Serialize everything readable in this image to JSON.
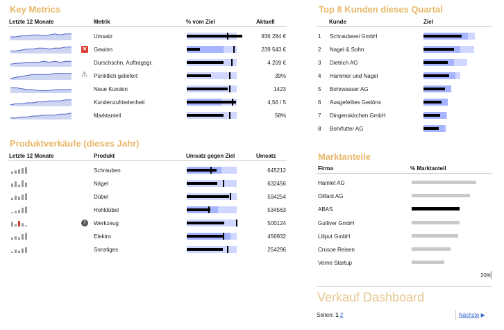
{
  "key_metrics": {
    "title": "Key Metrics",
    "headers": [
      "Letzte 12 Monate",
      "Metrik",
      "% vom Ziel",
      "Aktuell"
    ],
    "rows": [
      {
        "name": "Umsatz",
        "value": "936 284 €",
        "icon": "",
        "bg": 0.84,
        "mid": 0.0,
        "fg": 0.93,
        "marker": 0.68
      },
      {
        "name": "Gewinn",
        "value": "239 543 €",
        "icon": "close-icon",
        "bg": 0.84,
        "mid": 0.62,
        "fg": 0.22,
        "marker": 0.78
      },
      {
        "name": "Durschschn. Auftragsgr.",
        "value": "4 209 €",
        "icon": "",
        "bg": 0.84,
        "mid": 0.0,
        "fg": 0.62,
        "marker": 0.74
      },
      {
        "name": "Pünktlich geliefert",
        "value": "39%",
        "icon": "warning-icon",
        "bg": 0.84,
        "mid": 0.0,
        "fg": 0.41,
        "marker": 0.71
      },
      {
        "name": "Neue Kunden",
        "value": "1423",
        "icon": "",
        "bg": 0.84,
        "mid": 0.0,
        "fg": 0.69,
        "marker": 0.71
      },
      {
        "name": "Kundenzufriedenheit",
        "value": "4,56 / 5",
        "icon": "",
        "bg": 0.84,
        "mid": 0.58,
        "fg": 0.82,
        "marker": 0.75
      },
      {
        "name": "Marktanteil",
        "value": "58%",
        "icon": "",
        "bg": 0.84,
        "mid": 0.0,
        "fg": 0.62,
        "marker": 0.71
      }
    ]
  },
  "product_sales": {
    "title": "Produktverkäufe (dieses Jahr)",
    "headers": [
      "Letzte 12 Monate",
      "Produkt",
      "Umsatz gegen Ziel",
      "Umsatz"
    ],
    "rows": [
      {
        "name": "Schrauben",
        "value": "645212",
        "icon": "",
        "bg": 0.84,
        "mid": 0.58,
        "fg": 0.5,
        "marker": 0.4
      },
      {
        "name": "Nägel",
        "value": "632456",
        "icon": "",
        "bg": 0.84,
        "mid": 0.0,
        "fg": 0.51,
        "marker": 0.6
      },
      {
        "name": "Dübel",
        "value": "594254",
        "icon": "",
        "bg": 0.84,
        "mid": 0.0,
        "fg": 0.71,
        "marker": 0.72
      },
      {
        "name": "Hohldübel",
        "value": "534563",
        "icon": "",
        "bg": 0.84,
        "mid": 0.52,
        "fg": 0.39,
        "marker": 0.36
      },
      {
        "name": "Werkzeug",
        "value": "500124",
        "icon": "info-icon",
        "bg": 0.84,
        "mid": 0.0,
        "fg": 0.63,
        "marker": 0.83
      },
      {
        "name": "Elektro",
        "value": "456932",
        "icon": "",
        "bg": 0.84,
        "mid": 0.73,
        "fg": 0.62,
        "marker": 0.6
      },
      {
        "name": "Sonstiges",
        "value": "254296",
        "icon": "",
        "bg": 0.84,
        "mid": 0.0,
        "fg": 0.6,
        "marker": 0.68
      }
    ]
  },
  "top_customers": {
    "title": "Top 8 Kunden dieses Quartal",
    "headers": [
      "Kunde",
      "Ziel"
    ],
    "rows": [
      {
        "rank": "1",
        "name": "Schrauberei GmbH",
        "bg": 0.84,
        "fg": 0.63
      },
      {
        "rank": "2",
        "name": "Nagel & Sohn",
        "bg": 0.83,
        "fg": 0.5
      },
      {
        "rank": "3",
        "name": "Dietrich AG",
        "bg": 0.72,
        "fg": 0.4
      },
      {
        "rank": "4",
        "name": "Hammer und Nagel",
        "bg": 0.6,
        "fg": 0.42
      },
      {
        "rank": "5",
        "name": "Bohrwasser AG",
        "bg": 0.45,
        "fg": 0.35
      },
      {
        "rank": "6",
        "name": "Ausgefeiltes Gedöns",
        "bg": 0.4,
        "fg": 0.3
      },
      {
        "rank": "7",
        "name": "Dingenskirchen GmbH",
        "bg": 0.39,
        "fg": 0.27
      },
      {
        "rank": "8",
        "name": "Bohrfutter AG",
        "bg": 0.38,
        "fg": 0.25
      }
    ]
  },
  "market_share": {
    "title": "Marktanteile",
    "headers": [
      "Firma",
      "% Marktanteil"
    ],
    "rows": [
      {
        "name": "Hamlet AG",
        "share": 0.83,
        "highlight": false
      },
      {
        "name": "Olifant AG",
        "share": 0.75,
        "highlight": false
      },
      {
        "name": "ABAS",
        "share": 0.62,
        "highlight": true
      },
      {
        "name": "Gulliver GmbH",
        "share": 0.62,
        "highlight": false
      },
      {
        "name": "Liliput GmbH",
        "share": 0.6,
        "highlight": false
      },
      {
        "name": "Crusoe Reisen",
        "share": 0.5,
        "highlight": false
      },
      {
        "name": "Verne Startup",
        "share": 0.42,
        "highlight": false
      }
    ],
    "scale_label": "20%"
  },
  "dashboard": {
    "title": "Verkauf Dashboard",
    "pages_label": "Seiten:",
    "current_page": "1",
    "next_page": "2",
    "next_label": "Nächste"
  },
  "colors": {
    "accent": "#e8b769",
    "bar_bg": "#cfd6ff",
    "bar_mid": "#a6b3ff",
    "bar_fg": "#000000",
    "sparkline": "#4f63c8",
    "sparkline_fill": "#cdd5f2",
    "alert": "#d83a2e"
  }
}
